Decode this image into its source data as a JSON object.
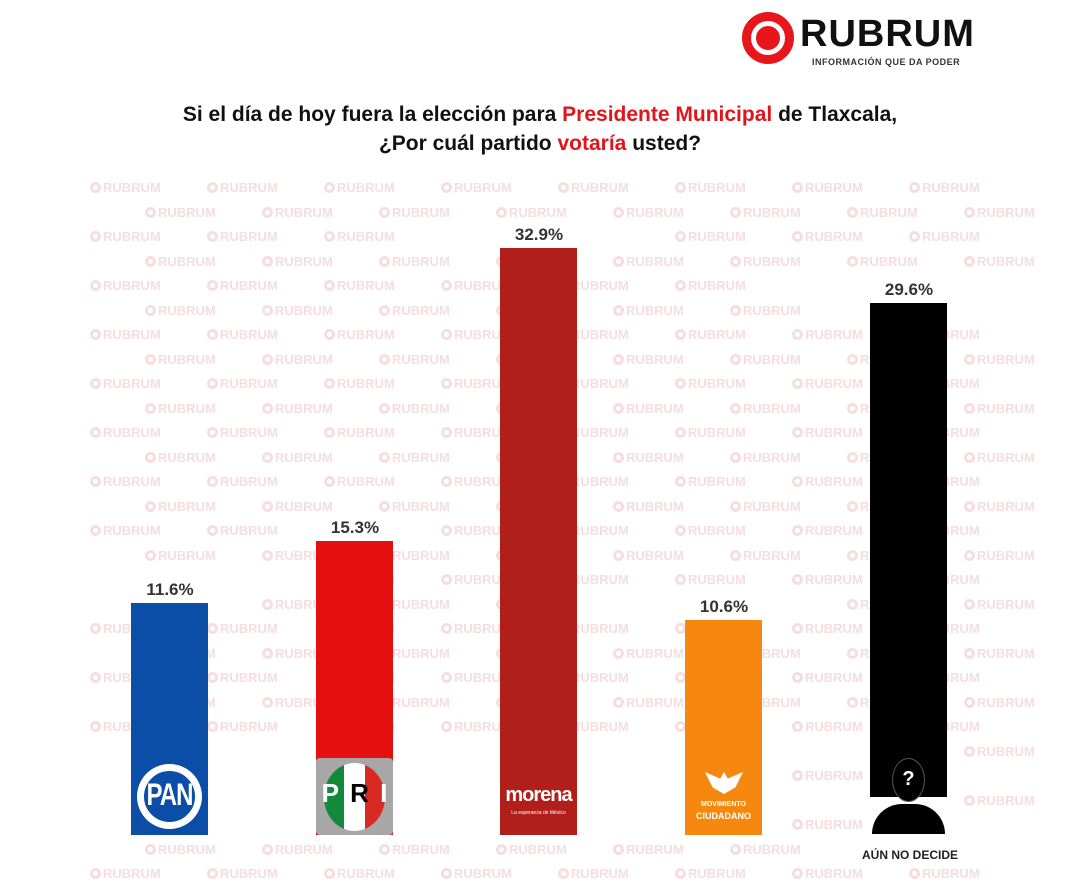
{
  "brand": {
    "name": "RUBRUM",
    "tagline": "INFORMACIÓN QUE DA PODER",
    "watermark": "RUBRUM",
    "color": "#e8151b"
  },
  "title": {
    "part1": "Si el día de hoy fuera la elección para ",
    "highlight1": "Presidente Municipal",
    "part2": " de Tlaxcala,",
    "part3": "¿Por cuál partido ",
    "highlight2": "votaría",
    "part4": " usted?"
  },
  "chart_data": {
    "type": "bar",
    "categories": [
      "PAN",
      "PRI",
      "morena",
      "MOVIMIENTO CIUDADANO",
      "AÚN NO DECIDE"
    ],
    "values": [
      11.6,
      15.3,
      32.9,
      10.6,
      29.6
    ],
    "value_labels": [
      "11.6%",
      "15.3%",
      "32.9%",
      "10.6%",
      "29.6%"
    ],
    "colors": [
      "#0a4ea8",
      "#e60f0f",
      "#b01f1a",
      "#f7880f",
      "#000000"
    ],
    "ylim": [
      0,
      35
    ],
    "grid": false,
    "legend": "none",
    "logos": {
      "pan": "PAN",
      "pri": [
        "P",
        "R",
        "I"
      ],
      "morena": "morena",
      "morena_sub": "La esperanza de México",
      "mc": [
        "MOVIMIENTO",
        "CIUDADANO"
      ],
      "undecided": "?"
    },
    "undecided_label": "AÚN NO DECIDE"
  }
}
